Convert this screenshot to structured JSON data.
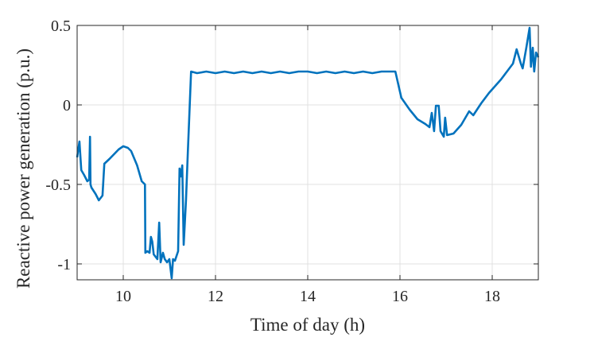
{
  "chart_data": {
    "type": "line",
    "title": "",
    "xlabel": "Time of day (h)",
    "ylabel": "Reactive power generation (p.u.)",
    "xlim": [
      9,
      19
    ],
    "ylim": [
      -1.1,
      0.5
    ],
    "xticks": [
      10,
      12,
      14,
      16,
      18
    ],
    "yticks": [
      -1,
      -0.5,
      0,
      0.5
    ],
    "ytick_labels": [
      "-1",
      "-0.5",
      "0",
      "0.5"
    ],
    "grid": true,
    "color": "#0072BD",
    "series": [
      {
        "x": [
          9.0,
          9.05,
          9.09,
          9.15,
          9.22,
          9.26,
          9.28,
          9.29,
          9.31,
          9.4,
          9.47,
          9.55,
          9.59,
          9.7,
          9.8,
          9.9,
          10.0,
          10.1,
          10.17,
          10.3,
          10.4,
          10.47,
          10.48,
          10.52,
          10.57,
          10.6,
          10.63,
          10.66,
          10.74,
          10.78,
          10.81,
          10.86,
          10.9,
          10.95,
          11.0,
          11.05,
          11.08,
          11.12,
          11.19,
          11.22,
          11.25,
          11.28,
          11.31,
          11.36,
          11.4,
          11.43,
          11.47,
          11.6,
          11.8,
          12.0,
          12.2,
          12.4,
          12.6,
          12.8,
          13.0,
          13.2,
          13.4,
          13.6,
          13.8,
          14.0,
          14.2,
          14.4,
          14.6,
          14.8,
          15.0,
          15.2,
          15.4,
          15.6,
          15.8,
          15.9,
          16.03,
          16.21,
          16.38,
          16.55,
          16.64,
          16.69,
          16.74,
          16.78,
          16.84,
          16.88,
          16.95,
          16.98,
          17.02,
          17.16,
          17.33,
          17.5,
          17.59,
          17.76,
          17.93,
          18.19,
          18.45,
          18.53,
          18.62,
          18.66,
          18.74,
          18.81,
          18.84,
          18.88,
          18.91,
          18.95,
          19.0
        ],
        "y": [
          -0.33,
          -0.23,
          -0.41,
          -0.44,
          -0.48,
          -0.47,
          -0.2,
          -0.5,
          -0.52,
          -0.56,
          -0.6,
          -0.57,
          -0.37,
          -0.34,
          -0.31,
          -0.28,
          -0.26,
          -0.27,
          -0.29,
          -0.38,
          -0.48,
          -0.5,
          -0.93,
          -0.92,
          -0.93,
          -0.83,
          -0.86,
          -0.94,
          -0.97,
          -0.74,
          -0.99,
          -0.93,
          -0.97,
          -0.99,
          -0.97,
          -1.09,
          -0.97,
          -0.98,
          -0.92,
          -0.4,
          -0.45,
          -0.38,
          -0.88,
          -0.6,
          -0.3,
          -0.09,
          0.21,
          0.2,
          0.21,
          0.2,
          0.21,
          0.2,
          0.21,
          0.2,
          0.21,
          0.2,
          0.21,
          0.2,
          0.21,
          0.21,
          0.2,
          0.21,
          0.2,
          0.21,
          0.2,
          0.21,
          0.2,
          0.21,
          0.21,
          0.21,
          0.045,
          -0.03,
          -0.09,
          -0.12,
          -0.14,
          -0.05,
          -0.165,
          -0.005,
          -0.005,
          -0.165,
          -0.2,
          -0.08,
          -0.19,
          -0.18,
          -0.125,
          -0.04,
          -0.065,
          0.01,
          0.075,
          0.16,
          0.26,
          0.35,
          0.26,
          0.23,
          0.36,
          0.485,
          0.24,
          0.36,
          0.21,
          0.33,
          0.3
        ]
      }
    ]
  }
}
